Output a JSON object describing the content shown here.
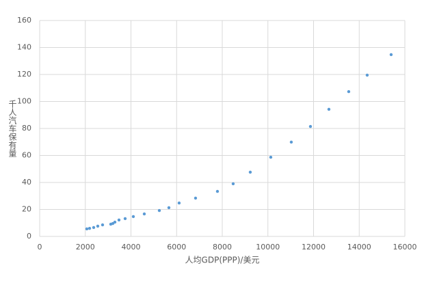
{
  "chart_data": {
    "type": "scatter",
    "x_label": "人均GDP(PPP)/美元",
    "y_label": "千人汽车保有量",
    "color": "#5b9bd5",
    "grid": true,
    "xlim": [
      0,
      16000
    ],
    "xticks": [
      0,
      2000,
      4000,
      6000,
      8000,
      10000,
      12000,
      14000,
      16000
    ],
    "ylim": [
      0,
      160
    ],
    "yticks": [
      0,
      20,
      40,
      60,
      80,
      100,
      120,
      140,
      160
    ],
    "x": [
      2067,
      2187,
      2367,
      2546,
      2756,
      3115,
      3205,
      3295,
      3475,
      3745,
      4104,
      4584,
      5243,
      5662,
      6111,
      6830,
      7789,
      8478,
      9227,
      10126,
      11025,
      11864,
      12673,
      13541,
      14350,
      15399
    ],
    "values": [
      5.6,
      6,
      6.6,
      7.6,
      8.6,
      9.1,
      9.6,
      10.6,
      12.2,
      13.2,
      14.7,
      16.7,
      19.2,
      21.3,
      24.8,
      28.4,
      33.4,
      39,
      47.6,
      58.7,
      69.9,
      81.5,
      94.2,
      107.3,
      119.5,
      134.7
    ]
  }
}
